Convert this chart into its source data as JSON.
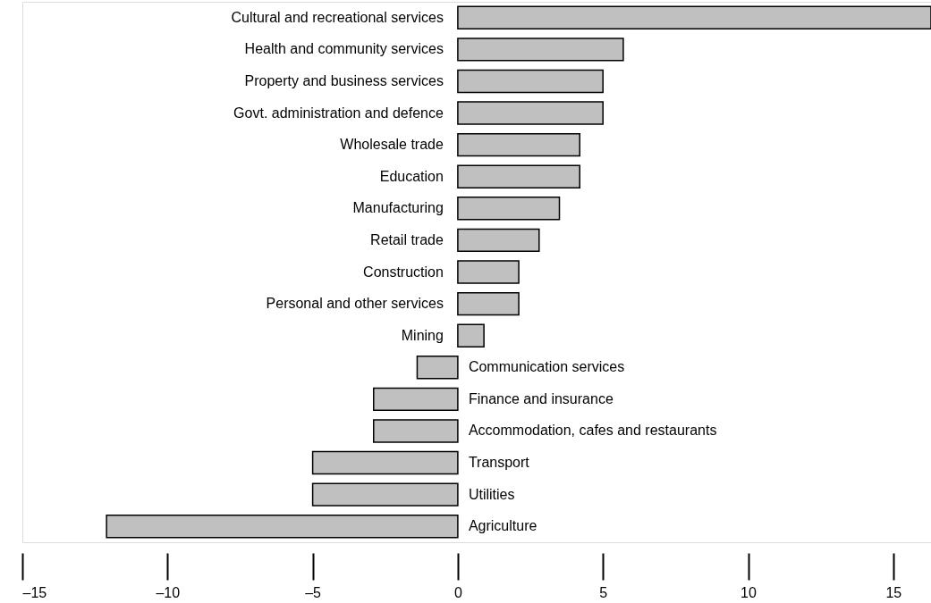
{
  "chart_data": {
    "type": "bar",
    "orientation": "horizontal",
    "categories": [
      "Cultural and recreational services",
      "Health and community services",
      "Property and business services",
      "Govt. administration and defence",
      "Wholesale trade",
      "Education",
      "Manufacturing",
      "Retail trade",
      "Construction",
      "Personal and other services",
      "Mining",
      "Communication services",
      "Finance and insurance",
      "Accommodation, cafes and restaurants",
      "Transport",
      "Utilities",
      "Agriculture"
    ],
    "values": [
      16.3,
      5.7,
      5.0,
      5.0,
      4.2,
      4.2,
      3.5,
      2.8,
      2.1,
      2.1,
      0.9,
      -1.4,
      -2.9,
      -2.9,
      -5.0,
      -5.0,
      -12.1
    ],
    "color": "#c0c0c0",
    "xlim": [
      -15,
      16.3
    ],
    "xticks": [
      {
        "value": -15,
        "label": "–15"
      },
      {
        "value": -10,
        "label": "–10"
      },
      {
        "value": -5,
        "label": "–5"
      },
      0,
      5,
      10,
      15
    ],
    "grid": false
  }
}
